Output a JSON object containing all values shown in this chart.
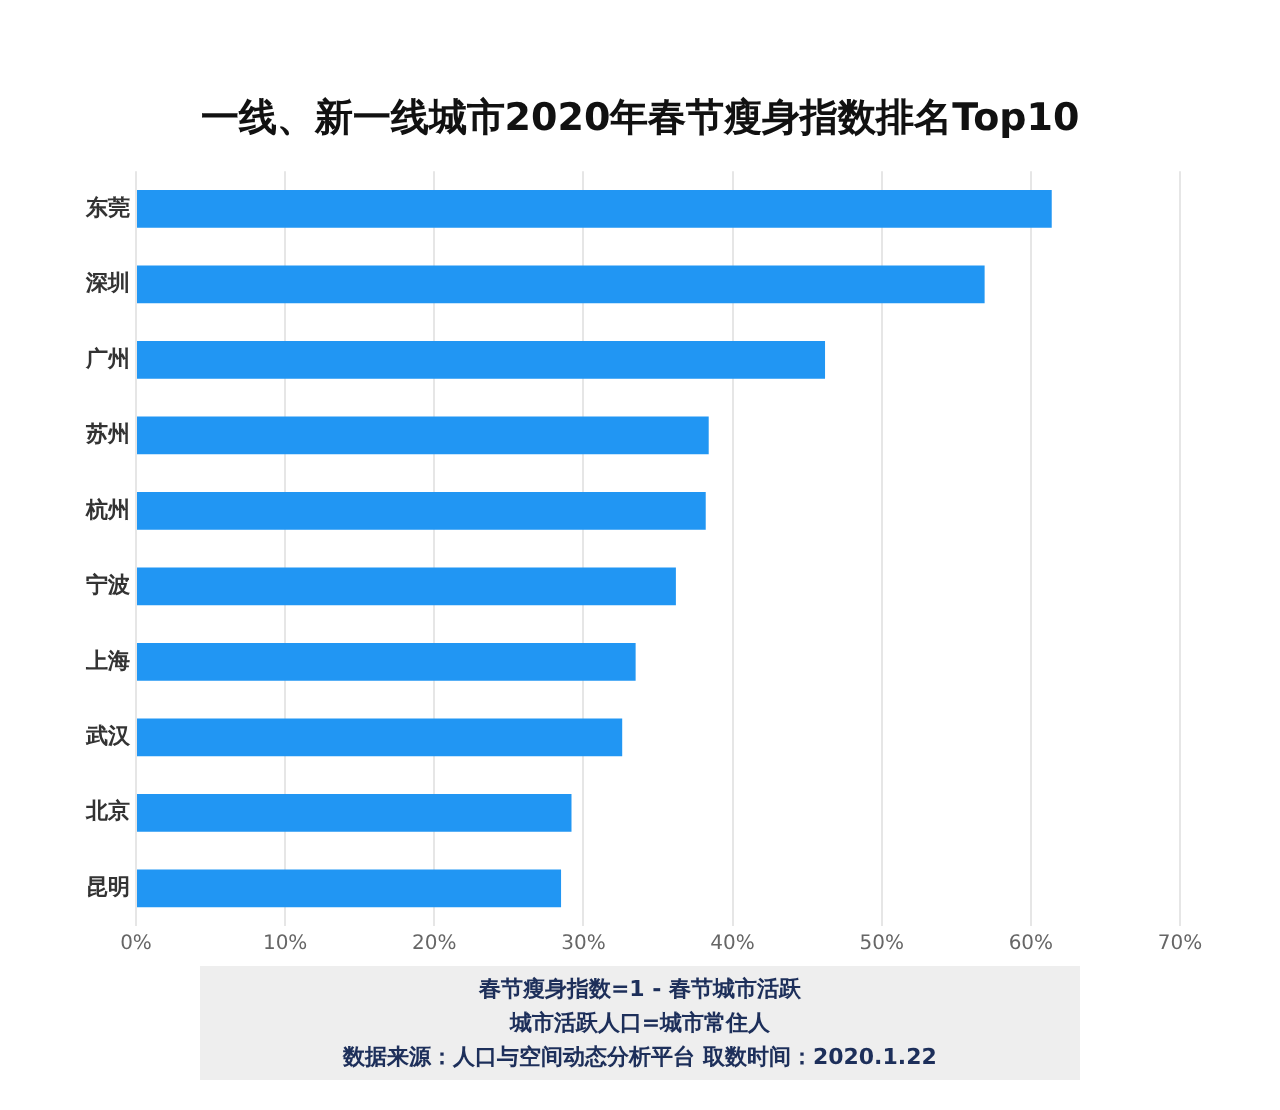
{
  "chart_data": {
    "type": "bar",
    "orientation": "horizontal",
    "title": "一线、新一线城市2020年春节瘦身指数排名Top10",
    "categories": [
      "东莞",
      "深圳",
      "广州",
      "苏州",
      "杭州",
      "宁波",
      "上海",
      "武汉",
      "北京",
      "昆明"
    ],
    "values": [
      61.4,
      56.9,
      46.2,
      38.4,
      38.2,
      36.2,
      33.5,
      32.6,
      29.2,
      28.5
    ],
    "color": "#2196f3",
    "xlim": [
      0,
      70
    ],
    "xticks": [
      {
        "value": 0,
        "label": "0%"
      },
      {
        "value": 10,
        "label": "10%"
      },
      {
        "value": 20,
        "label": "20%"
      },
      {
        "value": 30,
        "label": "30%"
      },
      {
        "value": 40,
        "label": "40%"
      },
      {
        "value": 50,
        "label": "50%"
      },
      {
        "value": 60,
        "label": "60%"
      },
      {
        "value": 70,
        "label": "70%"
      }
    ],
    "grid": "x",
    "legend": false,
    "annotations": [
      "春节瘦身指数=1 - 春节城市活跃",
      "城市活跃人口=城市常住人",
      "数据来源：人口与空间动态分析平台 取数时间：2020.1.22"
    ]
  }
}
